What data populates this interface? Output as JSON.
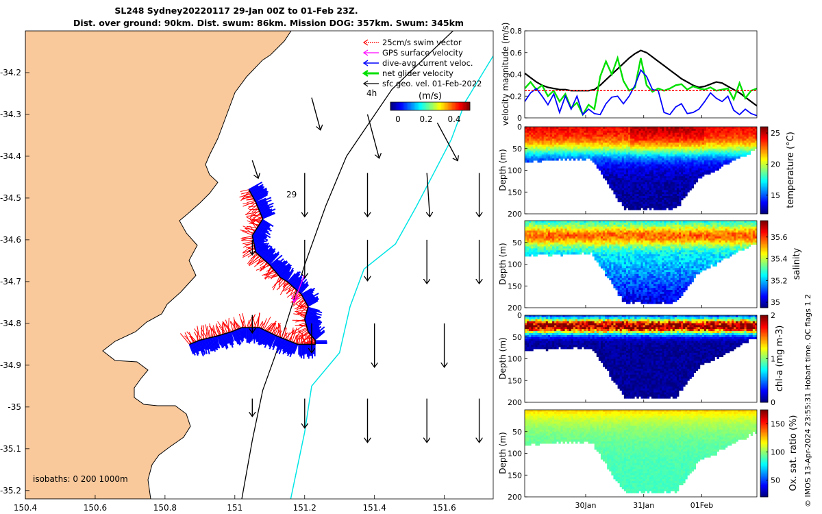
{
  "title": {
    "line1": "SL248 Sydney20220117 29-Jan 00Z to 01-Feb 23Z.",
    "line2": "Dist. over ground: 90km. Dist. swum: 86km. Mission DOG: 357km. Swum: 345km"
  },
  "credit": "© IMOS 13-Apr-2024 23:55:31 Hobart time. QC flags 1  2",
  "colors": {
    "land": "#f9c89b",
    "swim_vector": "#ff0000",
    "gps_velocity": "#ff00ff",
    "current": "#0000ff",
    "net_velocity": "#00e000",
    "geo_velocity": "#000000",
    "isobath_200": "#000000",
    "isobath_1000": "#00e5e5"
  },
  "chart_data": [
    {
      "type": "map",
      "xlim": [
        150.4,
        151.74
      ],
      "ylim": [
        -35.22,
        -34.1
      ],
      "x_ticks": [
        150.4,
        150.6,
        150.8,
        151,
        151.2,
        151.4,
        151.6
      ],
      "x_tick_labels": [
        "150.4",
        "150.6",
        "150.8",
        "151",
        "151.2",
        "151.4",
        "151.6"
      ],
      "y_ticks": [
        -34.2,
        -34.3,
        -34.4,
        -34.5,
        -34.6,
        -34.7,
        -34.8,
        -34.9,
        -35,
        -35.1,
        -35.2
      ],
      "y_tick_labels": [
        "-34.2",
        "-34.3",
        "-34.4",
        "-34.5",
        "-34.6",
        "-34.7",
        "-34.8",
        "-34.9",
        "-35",
        "-35.1",
        "-35.2"
      ],
      "legend": {
        "placement": "top-right",
        "entries": [
          "25cm/s swim vector",
          "GPS surface velocity",
          "dive-avg current veloc.",
          "net glider velocity",
          "sfc geo. vel. 01-Feb-2022"
        ]
      },
      "colorbar": {
        "label": "(m/s)",
        "ticks": [
          "0",
          "0.2",
          "0.4"
        ],
        "range": [
          0,
          0.45
        ]
      },
      "annotations": {
        "start_label": "29",
        "hour_label": "4h",
        "isobaths": "isobaths: 0   200  1000m"
      },
      "glider_track": {
        "lon": [
          151.04,
          151.06,
          151.08,
          151.05,
          151.06,
          151.1,
          151.12,
          151.13,
          151.15,
          151.19,
          151.21,
          151.2,
          151.21,
          151.23,
          151.23,
          151.18,
          151.12,
          151.07,
          151.02,
          150.99,
          150.95,
          150.9,
          150.87
        ],
        "lat": [
          -34.48,
          -34.51,
          -34.55,
          -34.59,
          -34.63,
          -34.66,
          -34.68,
          -34.69,
          -34.7,
          -34.73,
          -34.76,
          -34.79,
          -34.82,
          -34.84,
          -34.85,
          -34.85,
          -34.83,
          -34.81,
          -34.81,
          -34.82,
          -34.83,
          -34.84,
          -34.85
        ]
      },
      "geo_velocity_arrows": {
        "note": "lon, lat, u (east), v (north) in m/s",
        "lon": [
          151.22,
          151.38,
          151.58,
          151.05,
          151.2,
          151.38,
          151.55,
          151.7,
          151.05,
          151.2,
          151.38,
          151.55,
          151.7,
          151.05,
          151.22,
          151.4,
          151.6,
          151.05,
          151.2,
          151.38,
          151.55,
          151.7
        ],
        "lat": [
          -34.26,
          -34.3,
          -34.32,
          -34.41,
          -34.44,
          -34.44,
          -34.44,
          -34.44,
          -34.6,
          -34.6,
          -34.6,
          -34.6,
          -34.6,
          -34.78,
          -34.8,
          -34.8,
          -34.8,
          -34.98,
          -34.98,
          -34.98,
          -34.98,
          -34.98
        ],
        "u": [
          0.03,
          0.04,
          0.07,
          0.02,
          0.0,
          0.0,
          0.01,
          0.0,
          0.0,
          0.0,
          0.0,
          0.0,
          0.0,
          0.0,
          0.0,
          0.0,
          0.0,
          0.0,
          0.0,
          0.0,
          0.0,
          0.0
        ],
        "v": [
          -0.11,
          -0.15,
          -0.13,
          -0.06,
          -0.15,
          -0.15,
          -0.15,
          -0.15,
          -0.05,
          -0.13,
          -0.14,
          -0.15,
          -0.15,
          -0.06,
          -0.1,
          -0.15,
          -0.15,
          -0.06,
          -0.1,
          -0.15,
          -0.15,
          -0.15
        ]
      },
      "isobath_200": {
        "lon": [
          151.02,
          151.05,
          151.08,
          151.14,
          151.2,
          151.26,
          151.32,
          151.45,
          151.6,
          151.7
        ],
        "lat": [
          -35.22,
          -35.08,
          -34.96,
          -34.82,
          -34.66,
          -34.52,
          -34.4,
          -34.24,
          -34.12,
          -34.04
        ]
      },
      "isobath_1000": {
        "lon": [
          151.16,
          151.2,
          151.22,
          151.3,
          151.33,
          151.37,
          151.46,
          151.52,
          151.57,
          151.62,
          151.66,
          151.74
        ],
        "lat": [
          -35.22,
          -35.06,
          -34.95,
          -34.87,
          -34.76,
          -34.67,
          -34.61,
          -34.52,
          -34.44,
          -34.36,
          -34.27,
          -34.16
        ]
      }
    },
    {
      "type": "line",
      "ylabel": "velocity magnitude (m/s)",
      "ylim": [
        0,
        0.8
      ],
      "y_ticks": [
        0,
        0.2,
        0.4,
        0.6,
        0.8
      ],
      "x": [
        0,
        0.1,
        0.2,
        0.3,
        0.4,
        0.5,
        0.6,
        0.7,
        0.8,
        0.9,
        1.0,
        1.1,
        1.2,
        1.3,
        1.4,
        1.5,
        1.6,
        1.7,
        1.8,
        1.9,
        2.0,
        2.1,
        2.2,
        2.3,
        2.4,
        2.5,
        2.6,
        2.7,
        2.8,
        2.9,
        3.0,
        3.1,
        3.2,
        3.3,
        3.4,
        3.5,
        3.6,
        3.7,
        3.8,
        3.9,
        4.0
      ],
      "xlim": [
        0,
        4.0
      ],
      "x_ticks": [
        1.05,
        2.05,
        3.05
      ],
      "x_tick_labels": [
        "30Jan",
        "31Jan",
        "01Feb"
      ],
      "series": [
        {
          "color": "#000000",
          "values": [
            0.41,
            0.37,
            0.33,
            0.3,
            0.28,
            0.27,
            0.26,
            0.26,
            0.25,
            0.25,
            0.25,
            0.25,
            0.26,
            0.3,
            0.35,
            0.4,
            0.45,
            0.5,
            0.55,
            0.59,
            0.62,
            0.6,
            0.56,
            0.52,
            0.48,
            0.44,
            0.4,
            0.36,
            0.33,
            0.3,
            0.28,
            0.29,
            0.31,
            0.33,
            0.32,
            0.29,
            0.26,
            0.23,
            0.19,
            0.15,
            0.11
          ]
        },
        {
          "color": "#00e000",
          "values": [
            0.27,
            0.33,
            0.26,
            0.3,
            0.2,
            0.25,
            0.15,
            0.22,
            0.09,
            0.14,
            0.03,
            0.12,
            0.08,
            0.38,
            0.52,
            0.4,
            0.55,
            0.34,
            0.25,
            0.28,
            0.55,
            0.3,
            0.24,
            0.27,
            0.25,
            0.27,
            0.3,
            0.31,
            0.26,
            0.29,
            0.27,
            0.26,
            0.28,
            0.25,
            0.26,
            0.27,
            0.17,
            0.32,
            0.18,
            0.25,
            0.27
          ]
        },
        {
          "color": "#0000ff",
          "values": [
            0.15,
            0.23,
            0.27,
            0.2,
            0.12,
            0.22,
            0.05,
            0.2,
            0.08,
            0.2,
            0.03,
            0.08,
            0.04,
            0.03,
            0.13,
            0.19,
            0.2,
            0.13,
            0.2,
            0.3,
            0.44,
            0.38,
            0.26,
            0.25,
            0.05,
            0.03,
            0.1,
            0.13,
            0.04,
            0.05,
            0.08,
            0.15,
            0.23,
            0.18,
            0.15,
            0.2,
            0.07,
            0.03,
            0.08,
            0.04,
            0.02
          ]
        },
        {
          "color": "#ff0000",
          "style": "dashed",
          "values": [
            0.25,
            0.25,
            0.25,
            0.25,
            0.25,
            0.25,
            0.25,
            0.25,
            0.25,
            0.25,
            0.25,
            0.25,
            0.25,
            0.25,
            0.25,
            0.25,
            0.25,
            0.25,
            0.25,
            0.25,
            0.25,
            0.25,
            0.25,
            0.25,
            0.25,
            0.25,
            0.25,
            0.25,
            0.25,
            0.25,
            0.25,
            0.25,
            0.25,
            0.25,
            0.25,
            0.25,
            0.25,
            0.25,
            0.25,
            0.25,
            0.25
          ]
        }
      ]
    },
    {
      "type": "heatmap",
      "ylabel": "Depth (m)",
      "clabel": "temperature (°C)",
      "ylim": [
        200,
        0
      ],
      "y_ticks": [
        0,
        50,
        100,
        150,
        200
      ],
      "xlim": [
        0,
        4.0
      ],
      "clim": [
        12,
        26
      ],
      "c_ticks": [
        15,
        20,
        25
      ],
      "profile": {
        "surface": 25.5,
        "thermocline_depth": 55,
        "deep": 12,
        "warm_window": [
          1.8,
          3.1
        ]
      }
    },
    {
      "type": "heatmap",
      "ylabel": "Depth (m)",
      "clabel": "salinity",
      "ylim": [
        200,
        0
      ],
      "y_ticks": [
        50,
        100,
        150,
        200
      ],
      "xlim": [
        0,
        4.0
      ],
      "clim": [
        34.95,
        35.75
      ],
      "c_ticks": [
        35,
        35.2,
        35.4,
        35.6
      ],
      "c_tick_labels": [
        "35",
        "35.2",
        "35.4",
        "35.6"
      ],
      "profile": {
        "surface": 35.45,
        "max_depth": 35,
        "deep": 35.0
      }
    },
    {
      "type": "heatmap",
      "ylabel": "Depth (m)",
      "clabel": "chl-a (mg m-3)",
      "ylim": [
        200,
        0
      ],
      "y_ticks": [
        0,
        50,
        100,
        150,
        200
      ],
      "xlim": [
        0,
        4.0
      ],
      "clim": [
        0,
        2
      ],
      "c_ticks": [
        0,
        1,
        2
      ],
      "profile": {
        "max_depth": 25,
        "max_value": 2.0,
        "deep": 0.05
      }
    },
    {
      "type": "heatmap",
      "ylabel": "Depth (m)",
      "clabel": "Ox. sat. ratio (%)",
      "ylim": [
        200,
        0
      ],
      "y_ticks": [
        50,
        100,
        150,
        200
      ],
      "xlim": [
        0,
        4.0
      ],
      "clim": [
        20,
        175
      ],
      "c_ticks": [
        50,
        100,
        150
      ],
      "profile": {
        "surface": 110,
        "deep": 88
      }
    }
  ]
}
